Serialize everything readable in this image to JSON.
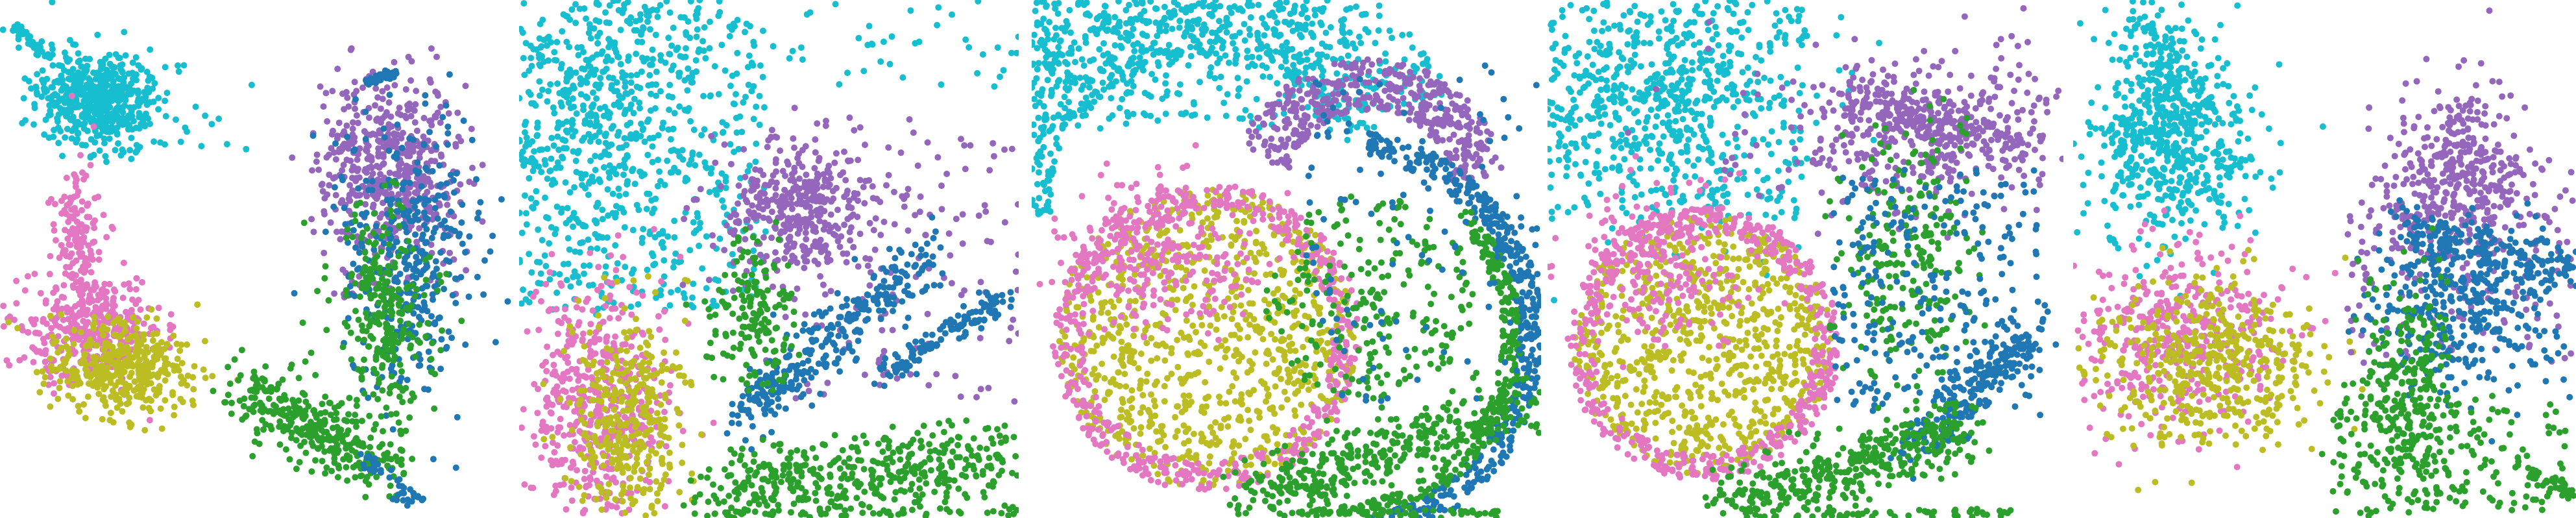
{
  "figure": {
    "panel_count": 5,
    "background_color": "#ffffff",
    "cluster_colors": {
      "cyan": "#17becf",
      "purple": "#9467bd",
      "blue": "#1f77b4",
      "green": "#2ca02c",
      "pink": "#e377c2",
      "olive": "#bcbd22"
    },
    "panels": [
      {
        "id": "panel-1"
      },
      {
        "id": "panel-2"
      },
      {
        "id": "panel-3"
      },
      {
        "id": "panel-4"
      },
      {
        "id": "panel-5"
      }
    ]
  }
}
